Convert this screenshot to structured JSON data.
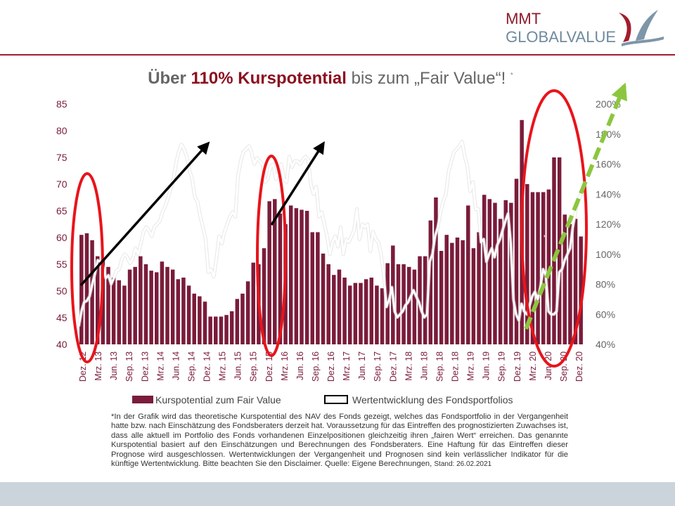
{
  "brand": {
    "line1": "MMT",
    "line2": "GLOBALVALUE"
  },
  "title": {
    "part1": "Über",
    "part2": "110% Kurspotential",
    "part3": "bis zum „Fair Value“!",
    "star": "*"
  },
  "annotation_quote": "„",
  "footnote": {
    "text": "*In der Grafik wird das theoretische Kurspotential des NAV des Fonds gezeigt, welches das Fondsportfolio in der Vergangenheit hatte bzw. nach Einschätzung des Fondsberaters derzeit hat. Voraussetzung für das Eintreffen des prognostizierten Zuwachses ist, dass alle aktuell im Portfolio des Fonds vorhandenen Einzelpositionen gleichzeitig ihren „fairen Wert“ erreichen. Das genannte Kurspotential basiert auf den Einschätzungen und Berechnungen des Fondsberaters. Eine Haftung für das Eintreffen dieser Prognose wird ausgeschlossen. Wertentwicklungen der Vergangenheit und Prognosen sind kein verlässlicher Indikator für die künftige Wertentwicklung. Bitte beachten Sie den Disclaimer. Quelle: Eigene Berechnungen,",
    "stand": "Stand: 26.02.2021"
  },
  "colors": {
    "bar": "#7a1c3a",
    "line": "#ffffff",
    "ellipse": "#e8141b",
    "green_arrow": "#8cc63f",
    "axis_left": "#7a1c3a",
    "axis_right": "#666666"
  },
  "chart_data": {
    "type": "bar+line",
    "x_tick_labels": [
      "Dez. 12",
      "Mrz. 13",
      "Jun. 13",
      "Sep. 13",
      "Dez. 13",
      "Mrz. 14",
      "Jun. 14",
      "Sep. 14",
      "Dez. 14",
      "Mrz. 15",
      "Jun. 15",
      "Sep. 15",
      "Dez. 15",
      "Mrz. 16",
      "Jun. 16",
      "Sep. 16",
      "Dez. 16",
      "Mrz. 17",
      "Jun. 17",
      "Sep. 17",
      "Dez. 17",
      "Mrz. 18",
      "Jun. 18",
      "Sep. 18",
      "Dez. 18",
      "Mrz. 19",
      "Jun. 19",
      "Sep. 19",
      "Dez. 19",
      "Mrz. 20",
      "Jun. 20",
      "Sep. 20",
      "Dez. 20"
    ],
    "y_left": {
      "ticks": [
        "40",
        "45",
        "50",
        "55",
        "60",
        "65",
        "70",
        "75",
        "80",
        "85"
      ],
      "range": [
        40,
        85
      ]
    },
    "y_right": {
      "ticks": [
        "40%",
        "60%",
        "80%",
        "100%",
        "120%",
        "140%",
        "160%",
        "180%",
        "200%"
      ],
      "range": [
        40,
        200
      ]
    },
    "series": [
      {
        "name": "Kurspotential zum Fair Value",
        "kind": "bar",
        "axis": "left",
        "values": [
          60.5,
          60.8,
          59.5,
          56.5,
          55.8,
          54.5,
          52.5,
          52,
          51,
          54,
          54.5,
          56.5,
          55,
          53.8,
          53.5,
          55.5,
          54.5,
          54,
          52.2,
          52.5,
          51,
          49.5,
          49,
          48,
          45.2,
          45.2,
          45.2,
          45.5,
          46.2,
          48.5,
          49.5,
          51.8,
          55.3,
          55,
          58,
          66.8,
          67.2,
          64.5,
          62.5,
          66,
          65.5,
          65.2,
          65,
          61,
          61,
          57,
          55,
          53,
          54,
          52.5,
          51,
          51.5,
          51.5,
          52.2,
          52.5,
          51,
          50.5,
          55.2,
          58.5,
          55,
          55,
          54.5,
          54,
          56.5,
          56.5,
          63.2,
          67.5,
          57.5,
          60.5,
          59,
          60,
          59.5,
          66,
          58,
          61,
          68,
          67.2,
          66.5,
          63.5,
          67,
          66.5,
          71,
          82,
          70,
          68.5,
          68.5,
          68.5,
          69,
          75,
          75,
          64.3,
          62.5,
          63.5,
          60.2
        ]
      },
      {
        "name": "Wertentwicklung des Fondsportfolios",
        "kind": "line",
        "axis": "right",
        "values": [
          52,
          62,
          68,
          69,
          72,
          80,
          87,
          96,
          95,
          92,
          84,
          86,
          80,
          84,
          89,
          90,
          97,
          100,
          98,
          94,
          97,
          104,
          100,
          107,
          115,
          118,
          116,
          112,
          118,
          120,
          122,
          128,
          132,
          137,
          143,
          150,
          160,
          168,
          173,
          170,
          165,
          156,
          150,
          138,
          135,
          125,
          118,
          110,
          88,
          90,
          85,
          97,
          112,
          107,
          115,
          120,
          125,
          128,
          125,
          152,
          162,
          168,
          170,
          172,
          168,
          160,
          164,
          162,
          160,
          148,
          150,
          158,
          160,
          150,
          155,
          160,
          150,
          148,
          165,
          158,
          162,
          162,
          160,
          163,
          165,
          163,
          146,
          140,
          145,
          125,
          128,
          120,
          112,
          100,
          108,
          112,
          105,
          118,
          100,
          110,
          108,
          112,
          116,
          130,
          110,
          120,
          118,
          120,
          102,
          115,
          110,
          108,
          100,
          86,
          65,
          70,
          78,
          62,
          58,
          60,
          62,
          66,
          68,
          72,
          76,
          72,
          68,
          62,
          58,
          60,
          95,
          100,
          112,
          118,
          128,
          135,
          140,
          155,
          162,
          168,
          170,
          172,
          175,
          165,
          158,
          142,
          148,
          130,
          130,
          108,
          110,
          95,
          100,
          104,
          98,
          106,
          110,
          116,
          122,
          127,
          108,
          70,
          60,
          56,
          67,
          62,
          60,
          66,
          72,
          75,
          70,
          78,
          90,
          86,
          62,
          60,
          60,
          62,
          88,
          90,
          96,
          100,
          104,
          118,
          128,
          136,
          140,
          140
        ]
      }
    ],
    "legend": [
      "Kurspotential zum Fair Value",
      "Wertentwicklung des Fondsportfolios"
    ],
    "legend_position": "bottom",
    "grid": false
  }
}
